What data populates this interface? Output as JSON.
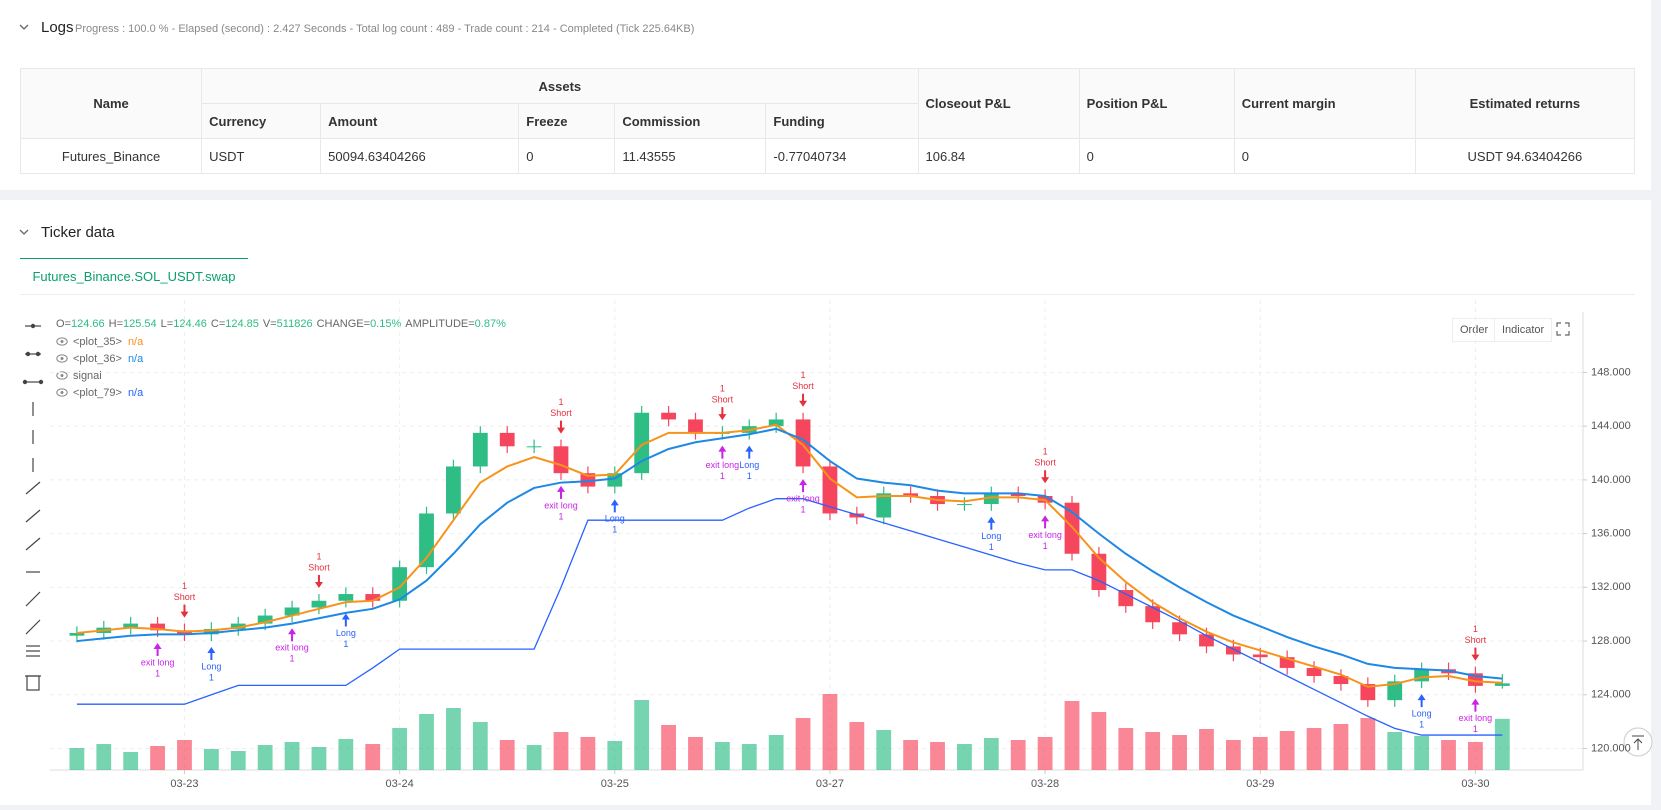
{
  "logs": {
    "title": "Logs",
    "status": "Progress : 100.0 % - Elapsed (second) : 2.427  Seconds - Total log count : 489 - Trade count : 214 - Completed (Tick 225.64KB)"
  },
  "table": {
    "headers": [
      "Name",
      "Assets",
      "Closeout P&L",
      "Position P&L",
      "Current margin",
      "Estimated returns"
    ],
    "subheaders": [
      "Currency",
      "Amount",
      "Freeze",
      "Commission",
      "Funding"
    ],
    "rows": [
      [
        "Futures_Binance",
        "USDT",
        "50094.63404266",
        "0",
        "11.43555",
        "-0.77040734",
        "106.84",
        "0",
        "0",
        "USDT 94.63404266"
      ]
    ]
  },
  "ticker": {
    "title": "Ticker data",
    "tab": "Futures_Binance.SOL_USDT.swap",
    "buttons": [
      "Order",
      "Indicator"
    ]
  },
  "chart_data": {
    "type": "candlestick",
    "info": [
      {
        "k": "O=",
        "v": "124.66"
      },
      {
        "k": "H=",
        "v": "125.54"
      },
      {
        "k": "L=",
        "v": "124.46"
      },
      {
        "k": "C=",
        "v": "124.85"
      },
      {
        "k": "V=",
        "v": "511826"
      },
      {
        "k": "CHANGE=",
        "v": "0.15%"
      },
      {
        "k": "AMPLITUDE=",
        "v": "0.87%"
      }
    ],
    "up_color": "#2ebd85",
    "down_color": "#f6465d",
    "xlim": [
      0,
      57
    ],
    "ylim": [
      118.4,
      152.5
    ],
    "xticks": [
      {
        "value": 5,
        "label": "03-23"
      },
      {
        "value": 13,
        "label": "03-24"
      },
      {
        "value": 21,
        "label": "03-25"
      },
      {
        "value": 29,
        "label": "03-27"
      },
      {
        "value": 37,
        "label": "03-28"
      },
      {
        "value": 45,
        "label": "03-29"
      },
      {
        "value": 53,
        "label": "03-30"
      }
    ],
    "yticks": [
      {
        "value": 120,
        "label": "120.000"
      },
      {
        "value": 124,
        "label": "124.000"
      },
      {
        "value": 128,
        "label": "128.000"
      },
      {
        "value": 132,
        "label": "132.000"
      },
      {
        "value": 136,
        "label": "136.000"
      },
      {
        "value": 140,
        "label": "140.000"
      },
      {
        "value": 144,
        "label": "144.000"
      },
      {
        "value": 148,
        "label": "148.000"
      }
    ],
    "grid": true,
    "x": [
      1,
      2,
      3,
      4,
      5,
      6,
      7,
      8,
      9,
      10,
      11,
      12,
      13,
      14,
      15,
      16,
      17,
      18,
      19,
      20,
      21,
      22,
      23,
      24,
      25,
      26,
      27,
      28,
      29,
      30,
      31,
      32,
      33,
      34,
      35,
      36,
      37,
      38,
      39,
      40,
      41,
      42,
      43,
      44,
      45,
      46,
      47,
      48,
      49,
      50,
      51,
      52,
      53,
      54
    ],
    "open": [
      128.4,
      128.6,
      129.0,
      129.3,
      128.8,
      128.5,
      128.9,
      129.3,
      129.9,
      130.5,
      131.0,
      131.5,
      131.0,
      133.5,
      137.5,
      141.0,
      143.5,
      142.5,
      142.5,
      140.5,
      139.5,
      140.5,
      145.0,
      144.5,
      143.5,
      143.5,
      144.0,
      144.5,
      141.0,
      137.5,
      137.2,
      139.0,
      138.8,
      138.2,
      138.2,
      139.0,
      138.8,
      138.3,
      134.5,
      131.8,
      130.6,
      129.4,
      128.5,
      127.6,
      127.0,
      126.8,
      126.0,
      125.4,
      124.8,
      123.6,
      125.0,
      125.9,
      125.6,
      124.66
    ],
    "high": [
      129.1,
      129.5,
      129.8,
      129.8,
      129.3,
      129.4,
      129.8,
      130.4,
      131.0,
      131.5,
      132.0,
      132.0,
      134.0,
      138.0,
      141.5,
      144.0,
      144.0,
      143.0,
      143.0,
      141.0,
      141.0,
      145.5,
      145.5,
      145.0,
      144.0,
      144.5,
      145.0,
      145.0,
      141.5,
      138.0,
      139.5,
      139.5,
      139.3,
      138.7,
      139.5,
      139.5,
      139.3,
      138.8,
      135.0,
      132.3,
      131.1,
      129.9,
      129.0,
      128.1,
      127.5,
      127.3,
      126.5,
      125.9,
      125.3,
      125.5,
      126.4,
      126.4,
      126.1,
      125.54
    ],
    "low": [
      127.9,
      128.1,
      128.5,
      128.3,
      128.0,
      128.0,
      128.4,
      128.8,
      129.4,
      130.0,
      130.5,
      130.5,
      130.5,
      133.0,
      137.0,
      140.5,
      142.0,
      142.0,
      140.0,
      139.0,
      139.0,
      140.0,
      144.0,
      143.0,
      143.0,
      143.0,
      143.5,
      140.5,
      137.0,
      136.7,
      136.7,
      138.3,
      137.7,
      137.7,
      137.7,
      138.3,
      137.8,
      134.0,
      131.3,
      130.1,
      128.9,
      128.0,
      127.1,
      126.5,
      126.3,
      125.5,
      124.9,
      124.3,
      123.1,
      123.1,
      124.5,
      125.1,
      124.16,
      124.46
    ],
    "close": [
      128.6,
      129.0,
      129.3,
      128.8,
      128.5,
      128.9,
      129.3,
      129.9,
      130.5,
      131.0,
      131.5,
      131.0,
      133.5,
      137.5,
      141.0,
      143.5,
      142.5,
      142.5,
      140.5,
      139.5,
      140.5,
      145.0,
      144.5,
      143.5,
      143.5,
      144.0,
      144.5,
      141.0,
      137.5,
      137.2,
      139.0,
      138.8,
      138.2,
      138.2,
      139.0,
      138.8,
      138.3,
      134.5,
      131.8,
      130.6,
      129.4,
      128.5,
      127.6,
      127.0,
      126.8,
      126.0,
      125.4,
      124.8,
      123.6,
      125.0,
      125.9,
      125.6,
      124.66,
      124.85
    ],
    "volume": [
      220000,
      260000,
      180000,
      240000,
      300000,
      210000,
      190000,
      250000,
      280000,
      230000,
      310000,
      260000,
      420000,
      560000,
      620000,
      480000,
      300000,
      250000,
      380000,
      330000,
      290000,
      700000,
      450000,
      330000,
      280000,
      260000,
      350000,
      520000,
      760000,
      480000,
      400000,
      300000,
      280000,
      260000,
      320000,
      300000,
      330000,
      690000,
      580000,
      420000,
      380000,
      350000,
      410000,
      300000,
      330000,
      390000,
      420000,
      460000,
      520000,
      380000,
      340000,
      300000,
      280000,
      511826
    ],
    "series": [
      {
        "name": "<plot_35>",
        "value_label": "n/a",
        "color": "#f7931a",
        "values": [
          128.6,
          128.8,
          129.0,
          128.9,
          128.7,
          128.8,
          129.0,
          129.4,
          129.9,
          130.4,
          130.9,
          131.0,
          132.0,
          134.2,
          137.0,
          139.8,
          141.0,
          141.7,
          141.1,
          140.3,
          140.4,
          142.6,
          143.5,
          143.5,
          143.5,
          143.7,
          144.1,
          142.6,
          140.1,
          138.7,
          138.8,
          138.8,
          138.5,
          138.4,
          138.7,
          138.7,
          138.5,
          136.5,
          134.2,
          132.4,
          130.9,
          129.7,
          128.7,
          127.9,
          127.3,
          126.7,
          126.1,
          125.5,
          124.6,
          124.8,
          125.3,
          125.4,
          125.0,
          124.9
        ]
      },
      {
        "name": "<plot_36>",
        "value_label": "n/a",
        "color": "#1e88e5",
        "values": [
          128.0,
          128.2,
          128.4,
          128.5,
          128.5,
          128.6,
          128.8,
          129.0,
          129.3,
          129.7,
          130.1,
          130.4,
          131.1,
          132.5,
          134.5,
          136.7,
          138.3,
          139.4,
          139.8,
          139.9,
          140.1,
          141.4,
          142.3,
          142.8,
          143.1,
          143.4,
          143.8,
          143.0,
          141.4,
          140.1,
          139.8,
          139.6,
          139.2,
          139.0,
          139.0,
          139.0,
          138.8,
          137.6,
          136.0,
          134.5,
          133.2,
          132.0,
          130.9,
          129.9,
          129.1,
          128.3,
          127.6,
          127.0,
          126.3,
          126.0,
          125.9,
          125.8,
          125.4,
          125.2
        ]
      },
      {
        "name": "<plot_79>",
        "value_label": "n/a",
        "color": "#2962ff",
        "values": [
          123.3,
          123.3,
          123.3,
          123.3,
          123.3,
          124.0,
          124.7,
          124.7,
          124.7,
          124.7,
          124.7,
          126.0,
          127.4,
          127.4,
          127.4,
          127.4,
          127.4,
          127.4,
          132.0,
          137.0,
          137.0,
          137.0,
          137.0,
          137.0,
          137.0,
          137.9,
          138.6,
          138.6,
          138.0,
          137.4,
          136.8,
          136.2,
          135.6,
          135.0,
          134.4,
          133.8,
          133.3,
          133.3,
          132.5,
          131.5,
          130.5,
          129.5,
          128.4,
          127.4,
          126.4,
          125.4,
          124.4,
          123.4,
          122.4,
          121.5,
          121.0,
          121.0,
          121.0,
          121.0
        ]
      }
    ],
    "signals": {
      "name": "signal",
      "marks": [
        {
          "x": 5,
          "label": "Short",
          "qty": "1",
          "dir": "down",
          "color": "#e5303f"
        },
        {
          "x": 6,
          "label": "Long",
          "qty": "1",
          "dir": "up",
          "color": "#2962ff"
        },
        {
          "x": 4,
          "label": "exit long",
          "qty": "1",
          "dir": "up",
          "color": "#c724e6"
        },
        {
          "x": 10,
          "label": "Short",
          "qty": "1",
          "dir": "down",
          "color": "#e5303f"
        },
        {
          "x": 11,
          "label": "Long",
          "qty": "1",
          "dir": "up",
          "color": "#2962ff"
        },
        {
          "x": 9,
          "label": "exit long",
          "qty": "1",
          "dir": "up",
          "color": "#c724e6"
        },
        {
          "x": 19,
          "label": "Short",
          "qty": "1",
          "dir": "down",
          "color": "#e5303f"
        },
        {
          "x": 21,
          "label": "Long",
          "qty": "1",
          "dir": "up",
          "color": "#2962ff"
        },
        {
          "x": 19,
          "label": "exit long",
          "qty": "1",
          "dir": "up",
          "color": "#c724e6"
        },
        {
          "x": 25,
          "label": "Short",
          "qty": "1",
          "dir": "down",
          "color": "#e5303f"
        },
        {
          "x": 26,
          "label": "Long",
          "qty": "1",
          "dir": "up",
          "color": "#2962ff"
        },
        {
          "x": 25,
          "label": "exit long",
          "qty": "1",
          "dir": "up",
          "color": "#c724e6"
        },
        {
          "x": 28,
          "label": "Short",
          "qty": "1",
          "dir": "down",
          "color": "#e5303f"
        },
        {
          "x": 28,
          "label": "exit long",
          "qty": "1",
          "dir": "up",
          "color": "#c724e6"
        },
        {
          "x": 37,
          "label": "Short",
          "qty": "1",
          "dir": "down",
          "color": "#e5303f"
        },
        {
          "x": 35,
          "label": "Long",
          "qty": "1",
          "dir": "up",
          "color": "#2962ff"
        },
        {
          "x": 37,
          "label": "exit long",
          "qty": "1",
          "dir": "up",
          "color": "#c724e6"
        },
        {
          "x": 53,
          "label": "Short",
          "qty": "1",
          "dir": "down",
          "color": "#e5303f"
        },
        {
          "x": 51,
          "label": "Long",
          "qty": "1",
          "dir": "up",
          "color": "#2962ff"
        },
        {
          "x": 53,
          "label": "exit long",
          "qty": "1",
          "dir": "up",
          "color": "#c724e6"
        }
      ]
    }
  }
}
